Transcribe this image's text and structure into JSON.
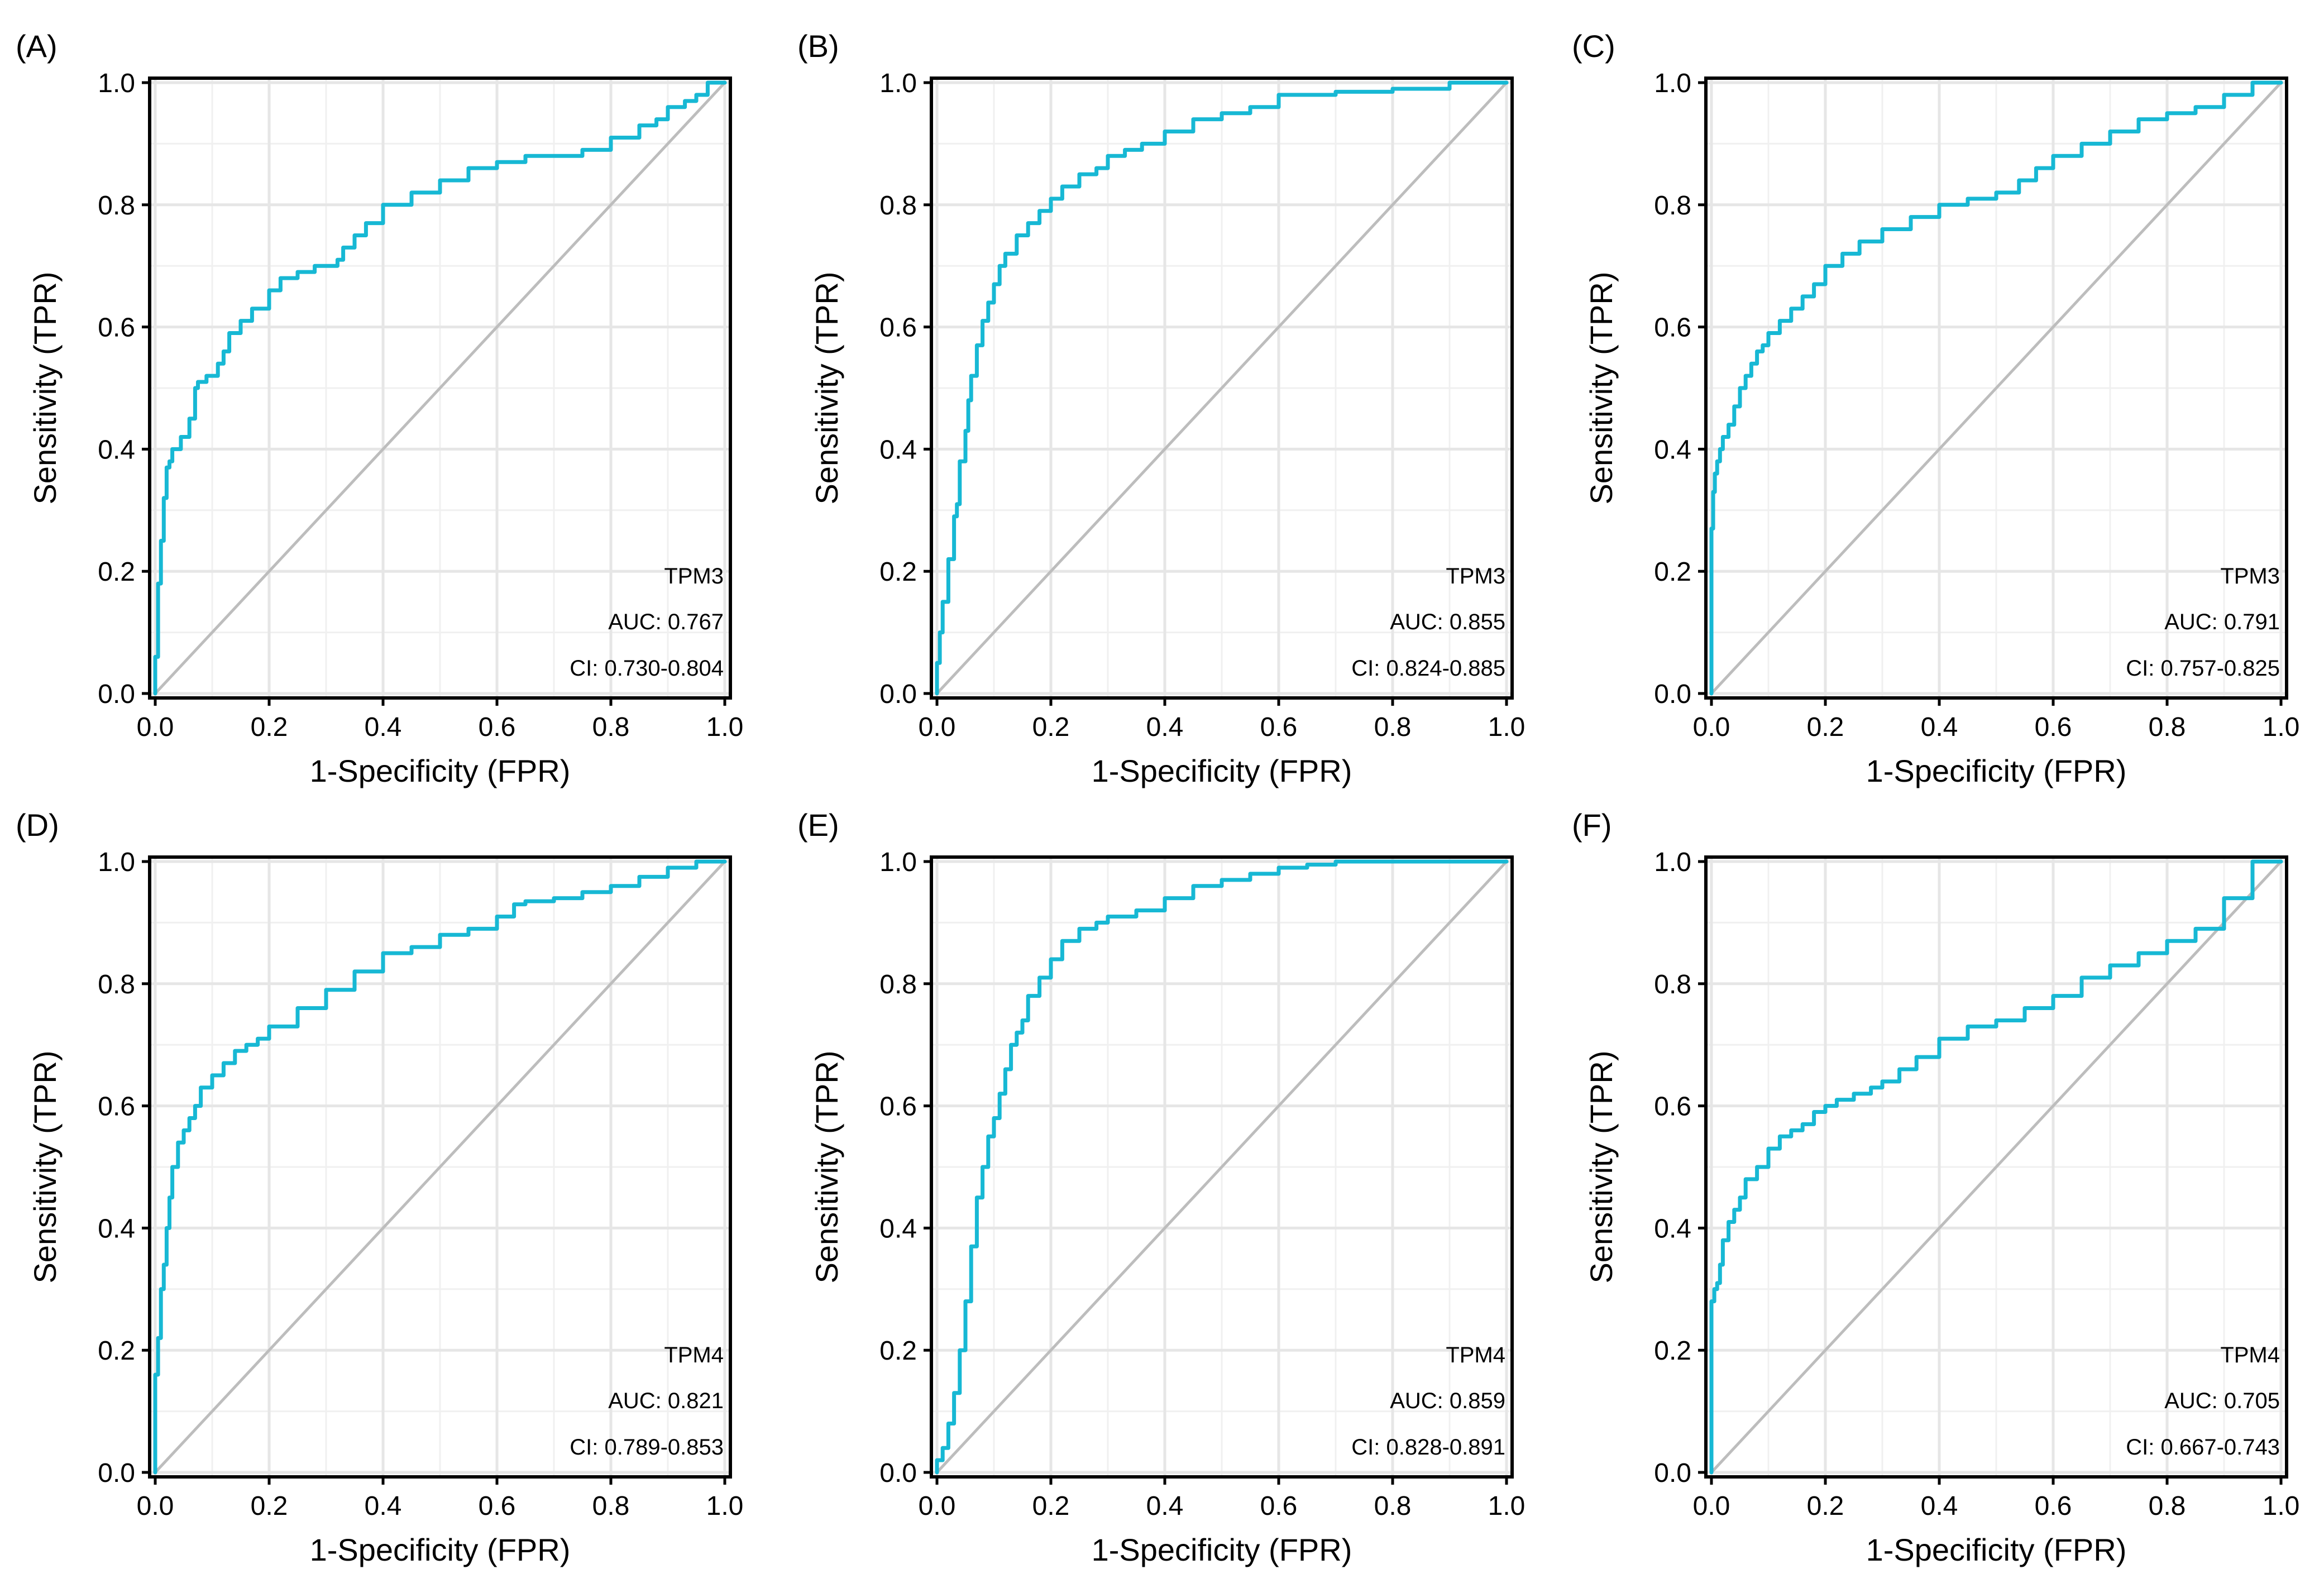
{
  "colors": {
    "roc": "#17b8d4",
    "diagonal": "#bdbdbd",
    "axis": "#000000"
  },
  "chart_data": [
    {
      "panel": "(A)",
      "type": "line",
      "title": "",
      "xlabel": "1-Specificity (FPR)",
      "ylabel": "Sensitivity (TPR)",
      "xlim": [
        0,
        1
      ],
      "ylim": [
        0,
        1
      ],
      "xticks": [
        "0.0",
        "0.2",
        "0.4",
        "0.6",
        "0.8",
        "1.0"
      ],
      "yticks": [
        "0.0",
        "0.2",
        "0.4",
        "0.6",
        "0.8",
        "1.0"
      ],
      "gene": "TPM3",
      "auc": "AUC: 0.767",
      "ci": "CI: 0.730-0.804",
      "series": [
        {
          "name": "ROC",
          "x": [
            0,
            0.005,
            0.01,
            0.015,
            0.02,
            0.025,
            0.03,
            0.045,
            0.06,
            0.07,
            0.075,
            0.09,
            0.11,
            0.12,
            0.13,
            0.15,
            0.17,
            0.2,
            0.22,
            0.25,
            0.28,
            0.32,
            0.33,
            0.35,
            0.37,
            0.4,
            0.45,
            0.5,
            0.55,
            0.6,
            0.65,
            0.72,
            0.75,
            0.8,
            0.85,
            0.88,
            0.9,
            0.93,
            0.95,
            0.97,
            1
          ],
          "y": [
            0,
            0.06,
            0.18,
            0.25,
            0.32,
            0.37,
            0.38,
            0.4,
            0.42,
            0.45,
            0.5,
            0.51,
            0.52,
            0.54,
            0.56,
            0.59,
            0.61,
            0.63,
            0.66,
            0.68,
            0.69,
            0.7,
            0.71,
            0.73,
            0.75,
            0.77,
            0.8,
            0.82,
            0.84,
            0.86,
            0.87,
            0.88,
            0.88,
            0.89,
            0.91,
            0.93,
            0.94,
            0.96,
            0.97,
            0.98,
            1
          ]
        },
        {
          "name": "Reference",
          "x": [
            0,
            1
          ],
          "y": [
            0,
            1
          ]
        }
      ]
    },
    {
      "panel": "(B)",
      "type": "line",
      "title": "",
      "xlabel": "1-Specificity (FPR)",
      "ylabel": "Sensitivity (TPR)",
      "xlim": [
        0,
        1
      ],
      "ylim": [
        0,
        1
      ],
      "xticks": [
        "0.0",
        "0.2",
        "0.4",
        "0.6",
        "0.8",
        "1.0"
      ],
      "yticks": [
        "0.0",
        "0.2",
        "0.4",
        "0.6",
        "0.8",
        "1.0"
      ],
      "gene": "TPM3",
      "auc": "AUC: 0.855",
      "ci": "CI: 0.824-0.885",
      "series": [
        {
          "name": "ROC",
          "x": [
            0,
            0.005,
            0.01,
            0.02,
            0.03,
            0.035,
            0.04,
            0.05,
            0.055,
            0.06,
            0.07,
            0.08,
            0.09,
            0.1,
            0.11,
            0.12,
            0.14,
            0.16,
            0.18,
            0.2,
            0.22,
            0.25,
            0.28,
            0.3,
            0.33,
            0.36,
            0.4,
            0.45,
            0.5,
            0.55,
            0.6,
            0.7,
            0.8,
            0.9,
            1
          ],
          "y": [
            0,
            0.05,
            0.1,
            0.15,
            0.22,
            0.29,
            0.31,
            0.38,
            0.43,
            0.48,
            0.52,
            0.57,
            0.61,
            0.64,
            0.67,
            0.7,
            0.72,
            0.75,
            0.77,
            0.79,
            0.81,
            0.83,
            0.85,
            0.86,
            0.88,
            0.89,
            0.9,
            0.92,
            0.94,
            0.95,
            0.96,
            0.98,
            0.985,
            0.99,
            1
          ]
        },
        {
          "name": "Reference",
          "x": [
            0,
            1
          ],
          "y": [
            0,
            1
          ]
        }
      ]
    },
    {
      "panel": "(C)",
      "type": "line",
      "title": "",
      "xlabel": "1-Specificity (FPR)",
      "ylabel": "Sensitivity (TPR)",
      "xlim": [
        0,
        1
      ],
      "ylim": [
        0,
        1
      ],
      "xticks": [
        "0.0",
        "0.2",
        "0.4",
        "0.6",
        "0.8",
        "1.0"
      ],
      "yticks": [
        "0.0",
        "0.2",
        "0.4",
        "0.6",
        "0.8",
        "1.0"
      ],
      "gene": "TPM3",
      "auc": "AUC: 0.791",
      "ci": "CI: 0.757-0.825",
      "series": [
        {
          "name": "ROC",
          "x": [
            0,
            0.003,
            0.006,
            0.01,
            0.015,
            0.02,
            0.03,
            0.04,
            0.05,
            0.06,
            0.07,
            0.08,
            0.09,
            0.1,
            0.12,
            0.14,
            0.16,
            0.18,
            0.2,
            0.23,
            0.26,
            0.3,
            0.35,
            0.4,
            0.45,
            0.5,
            0.54,
            0.57,
            0.6,
            0.65,
            0.7,
            0.75,
            0.8,
            0.85,
            0.9,
            0.95,
            1
          ],
          "y": [
            0,
            0.27,
            0.33,
            0.36,
            0.38,
            0.4,
            0.42,
            0.44,
            0.47,
            0.5,
            0.52,
            0.54,
            0.56,
            0.57,
            0.59,
            0.61,
            0.63,
            0.65,
            0.67,
            0.7,
            0.72,
            0.74,
            0.76,
            0.78,
            0.8,
            0.81,
            0.82,
            0.84,
            0.86,
            0.88,
            0.9,
            0.92,
            0.94,
            0.95,
            0.96,
            0.98,
            1
          ]
        },
        {
          "name": "Reference",
          "x": [
            0,
            1
          ],
          "y": [
            0,
            1
          ]
        }
      ]
    },
    {
      "panel": "(D)",
      "type": "line",
      "title": "",
      "xlabel": "1-Specificity (FPR)",
      "ylabel": "Sensitivity (TPR)",
      "xlim": [
        0,
        1
      ],
      "ylim": [
        0,
        1
      ],
      "xticks": [
        "0.0",
        "0.2",
        "0.4",
        "0.6",
        "0.8",
        "1.0"
      ],
      "yticks": [
        "0.0",
        "0.2",
        "0.4",
        "0.6",
        "0.8",
        "1.0"
      ],
      "gene": "TPM4",
      "auc": "AUC: 0.821",
      "ci": "CI: 0.789-0.853",
      "series": [
        {
          "name": "ROC",
          "x": [
            0,
            0.005,
            0.01,
            0.015,
            0.02,
            0.025,
            0.03,
            0.04,
            0.05,
            0.06,
            0.07,
            0.08,
            0.1,
            0.12,
            0.14,
            0.16,
            0.18,
            0.2,
            0.25,
            0.3,
            0.35,
            0.4,
            0.45,
            0.5,
            0.55,
            0.6,
            0.63,
            0.65,
            0.7,
            0.75,
            0.8,
            0.85,
            0.9,
            0.95,
            1
          ],
          "y": [
            0,
            0.16,
            0.22,
            0.3,
            0.34,
            0.4,
            0.45,
            0.5,
            0.54,
            0.56,
            0.58,
            0.6,
            0.63,
            0.65,
            0.67,
            0.69,
            0.7,
            0.71,
            0.73,
            0.76,
            0.79,
            0.82,
            0.85,
            0.86,
            0.88,
            0.89,
            0.91,
            0.93,
            0.935,
            0.94,
            0.95,
            0.96,
            0.975,
            0.99,
            1
          ]
        },
        {
          "name": "Reference",
          "x": [
            0,
            1
          ],
          "y": [
            0,
            1
          ]
        }
      ]
    },
    {
      "panel": "(E)",
      "type": "line",
      "title": "",
      "xlabel": "1-Specificity (FPR)",
      "ylabel": "Sensitivity (TPR)",
      "xlim": [
        0,
        1
      ],
      "ylim": [
        0,
        1
      ],
      "xticks": [
        "0.0",
        "0.2",
        "0.4",
        "0.6",
        "0.8",
        "1.0"
      ],
      "yticks": [
        "0.0",
        "0.2",
        "0.4",
        "0.6",
        "0.8",
        "1.0"
      ],
      "gene": "TPM4",
      "auc": "AUC: 0.859",
      "ci": "CI: 0.828-0.891",
      "series": [
        {
          "name": "ROC",
          "x": [
            0,
            0.01,
            0.02,
            0.03,
            0.04,
            0.05,
            0.06,
            0.07,
            0.08,
            0.09,
            0.1,
            0.11,
            0.12,
            0.13,
            0.14,
            0.15,
            0.16,
            0.18,
            0.2,
            0.22,
            0.25,
            0.28,
            0.3,
            0.35,
            0.4,
            0.45,
            0.5,
            0.55,
            0.6,
            0.65,
            0.7,
            0.8,
            0.9,
            1
          ],
          "y": [
            0,
            0.02,
            0.04,
            0.08,
            0.13,
            0.2,
            0.28,
            0.37,
            0.45,
            0.5,
            0.55,
            0.58,
            0.62,
            0.66,
            0.7,
            0.72,
            0.74,
            0.78,
            0.81,
            0.84,
            0.87,
            0.89,
            0.9,
            0.91,
            0.92,
            0.94,
            0.96,
            0.97,
            0.98,
            0.99,
            0.995,
            1,
            1,
            1
          ]
        },
        {
          "name": "Reference",
          "x": [
            0,
            1
          ],
          "y": [
            0,
            1
          ]
        }
      ]
    },
    {
      "panel": "(F)",
      "type": "line",
      "title": "",
      "xlabel": "1-Specificity (FPR)",
      "ylabel": "Sensitivity (TPR)",
      "xlim": [
        0,
        1
      ],
      "ylim": [
        0,
        1
      ],
      "xticks": [
        "0.0",
        "0.2",
        "0.4",
        "0.6",
        "0.8",
        "1.0"
      ],
      "yticks": [
        "0.0",
        "0.2",
        "0.4",
        "0.6",
        "0.8",
        "1.0"
      ],
      "gene": "TPM4",
      "auc": "AUC: 0.705",
      "ci": "CI: 0.667-0.743",
      "series": [
        {
          "name": "ROC",
          "x": [
            0,
            0.005,
            0.01,
            0.015,
            0.02,
            0.03,
            0.04,
            0.05,
            0.06,
            0.08,
            0.1,
            0.12,
            0.14,
            0.16,
            0.18,
            0.2,
            0.22,
            0.25,
            0.28,
            0.3,
            0.33,
            0.36,
            0.4,
            0.45,
            0.5,
            0.55,
            0.6,
            0.65,
            0.7,
            0.75,
            0.8,
            0.85,
            0.9,
            0.95,
            1
          ],
          "y": [
            0,
            0.28,
            0.3,
            0.31,
            0.34,
            0.38,
            0.41,
            0.43,
            0.45,
            0.48,
            0.5,
            0.53,
            0.55,
            0.56,
            0.57,
            0.59,
            0.6,
            0.61,
            0.62,
            0.63,
            0.64,
            0.66,
            0.68,
            0.71,
            0.73,
            0.74,
            0.76,
            0.78,
            0.81,
            0.83,
            0.85,
            0.87,
            0.89,
            0.94,
            1
          ]
        },
        {
          "name": "Reference",
          "x": [
            0,
            1
          ],
          "y": [
            0,
            1
          ]
        }
      ]
    }
  ]
}
